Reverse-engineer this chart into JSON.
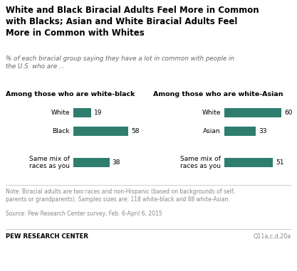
{
  "title": "White and Black Biracial Adults Feel More in Common\nwith Blacks; Asian and White Biracial Adults Feel\nMore in Common with Whites",
  "subtitle": "% of each biracial group saying they have a lot in common with people in\nthe U.S. who are ...",
  "left_group_title": "Among those who are white-black",
  "right_group_title": "Among those who are white-Asian",
  "left_bars": [
    {
      "label": "White",
      "value": 19
    },
    {
      "label": "Black",
      "value": 58
    },
    {
      "label": "Same mix of\nraces as you",
      "value": 38
    }
  ],
  "right_bars": [
    {
      "label": "White",
      "value": 60
    },
    {
      "label": "Asian",
      "value": 33
    },
    {
      "label": "Same mix of\nraces as you",
      "value": 51
    }
  ],
  "bar_color": "#2e7d6e",
  "note": "Note: Biracial adults are two races and non-Hispanic (based on backgrounds of self,\nparents or grandparents). Samples sizes are: 118 white-black and 88 white-Asian.",
  "source": "Source: Pew Research Center survey, Feb. 6-April 6, 2015",
  "footer_left": "PEW RESEARCH CENTER",
  "footer_right": "Q11a,c,d,20a",
  "max_value": 75,
  "background_color": "#ffffff"
}
